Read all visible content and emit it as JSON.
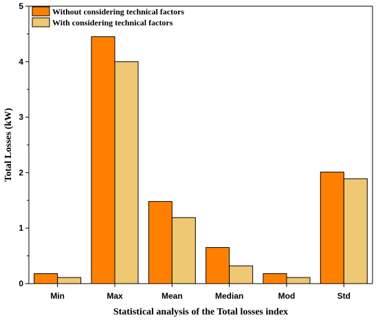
{
  "chart_data": {
    "type": "bar",
    "title": "",
    "xlabel": "Statistical analysis of the Total losses index",
    "ylabel": "Total Losses (kW)",
    "categories": [
      "Min",
      "Max",
      "Mean",
      "Median",
      "Mod",
      "Std"
    ],
    "series": [
      {
        "name": "Without considering technical factors",
        "color": "#FF8000",
        "values": [
          0.18,
          4.45,
          1.48,
          0.65,
          0.18,
          2.01
        ]
      },
      {
        "name": "With considering technical factors",
        "color": "#EFC873",
        "values": [
          0.11,
          4.0,
          1.19,
          0.32,
          0.11,
          1.89
        ]
      }
    ],
    "ylim": [
      0,
      5
    ],
    "yticks": [
      "0",
      "1",
      "2",
      "3",
      "4",
      "5"
    ],
    "grid": false,
    "legend": "top-left"
  }
}
